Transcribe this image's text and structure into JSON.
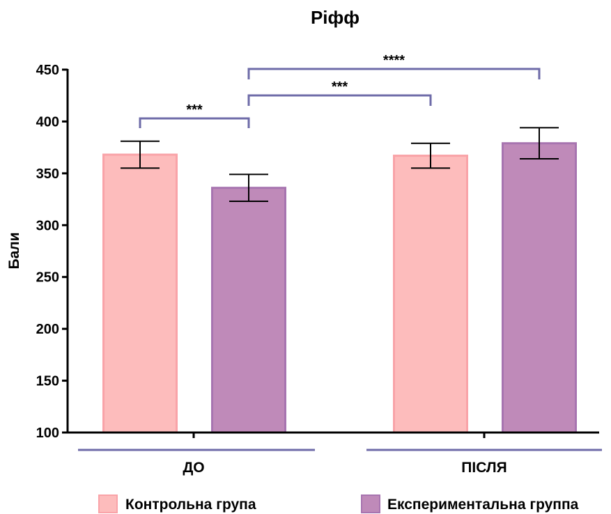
{
  "chart_data": {
    "type": "bar",
    "title": "Ріфф",
    "ylabel": "Бали",
    "xlabel": "",
    "ylim": [
      100,
      450
    ],
    "yticks": [
      100,
      150,
      200,
      250,
      300,
      350,
      400,
      450
    ],
    "grid": false,
    "legend_position": "bottom",
    "categories": [
      "ДО",
      "ПІСЛЯ"
    ],
    "series": [
      {
        "name": "Контрольна група",
        "values": [
          368,
          367
        ],
        "error": [
          13,
          12
        ],
        "color": "#FDBCBC",
        "edge_color": "#F9A3A8"
      },
      {
        "name": "Експериментальна группа",
        "values": [
          336,
          379
        ],
        "error": [
          13,
          15
        ],
        "color": "#BF8AB9",
        "edge_color": "#A774B0"
      }
    ],
    "significance": [
      {
        "label": "***",
        "from": [
          0,
          0
        ],
        "to": [
          0,
          1
        ]
      },
      {
        "label": "***",
        "from": [
          0,
          1
        ],
        "to": [
          1,
          0
        ]
      },
      {
        "label": "****",
        "from": [
          0,
          1
        ],
        "to": [
          1,
          1
        ]
      }
    ],
    "bracket_color": "#6E6BA8"
  }
}
